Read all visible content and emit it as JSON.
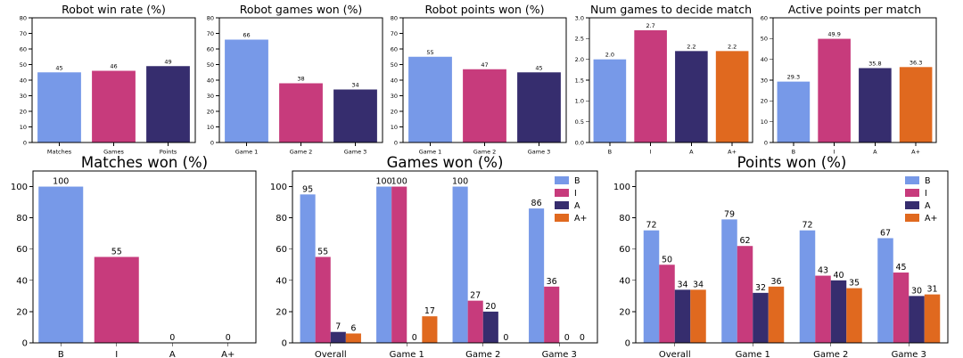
{
  "colors": {
    "B": "#7799e8",
    "I": "#c73b7c",
    "A": "#362d6e",
    "A+": "#e0691f"
  },
  "chart_data": [
    {
      "id": "robot-win-rate",
      "type": "bar",
      "title": "Robot win rate (%)",
      "categories": [
        "Matches",
        "Games",
        "Points"
      ],
      "series": [
        {
          "name": "win rate",
          "values": [
            45,
            46,
            49
          ]
        }
      ],
      "labels": [
        "45",
        "46",
        "49"
      ],
      "bar_colors": [
        "#7799e8",
        "#c73b7c",
        "#362d6e"
      ],
      "ylim": [
        0,
        80
      ],
      "yticks": [
        "0",
        "10",
        "20",
        "30",
        "40",
        "50",
        "60",
        "70",
        "80"
      ]
    },
    {
      "id": "robot-games-won",
      "type": "bar",
      "title": "Robot games won (%)",
      "categories": [
        "Game 1",
        "Game 2",
        "Game 3"
      ],
      "series": [
        {
          "name": "games won",
          "values": [
            66,
            38,
            34
          ]
        }
      ],
      "labels": [
        "66",
        "38",
        "34"
      ],
      "bar_colors": [
        "#7799e8",
        "#c73b7c",
        "#362d6e"
      ],
      "ylim": [
        0,
        80
      ],
      "yticks": [
        "0",
        "10",
        "20",
        "30",
        "40",
        "50",
        "60",
        "70",
        "80"
      ]
    },
    {
      "id": "robot-points-won",
      "type": "bar",
      "title": "Robot points won (%)",
      "categories": [
        "Game 1",
        "Game 2",
        "Game 3"
      ],
      "series": [
        {
          "name": "points won",
          "values": [
            55,
            47,
            45
          ]
        }
      ],
      "labels": [
        "55",
        "47",
        "45"
      ],
      "bar_colors": [
        "#7799e8",
        "#c73b7c",
        "#362d6e"
      ],
      "ylim": [
        0,
        80
      ],
      "yticks": [
        "0",
        "10",
        "20",
        "30",
        "40",
        "50",
        "60",
        "70",
        "80"
      ]
    },
    {
      "id": "num-games-to-decide",
      "type": "bar",
      "title": "Num games to decide match",
      "categories": [
        "B",
        "I",
        "A",
        "A+"
      ],
      "series": [
        {
          "name": "games",
          "values": [
            2.0,
            2.7,
            2.2,
            2.2
          ]
        }
      ],
      "labels": [
        "2.0",
        "2.7",
        "2.2",
        "2.2"
      ],
      "bar_colors": [
        "#7799e8",
        "#c73b7c",
        "#362d6e",
        "#e0691f"
      ],
      "ylim": [
        0,
        3.0
      ],
      "yticks": [
        "0.0",
        "0.5",
        "1.0",
        "1.5",
        "2.0",
        "2.5",
        "3.0"
      ]
    },
    {
      "id": "active-points-per-match",
      "type": "bar",
      "title": "Active points per match",
      "categories": [
        "B",
        "I",
        "A",
        "A+"
      ],
      "series": [
        {
          "name": "points",
          "values": [
            29.3,
            49.9,
            35.8,
            36.3
          ]
        }
      ],
      "labels": [
        "29.3",
        "49.9",
        "35.8",
        "36.3"
      ],
      "bar_colors": [
        "#7799e8",
        "#c73b7c",
        "#362d6e",
        "#e0691f"
      ],
      "ylim": [
        0,
        60
      ],
      "yticks": [
        "0",
        "10",
        "20",
        "30",
        "40",
        "50",
        "60"
      ]
    },
    {
      "id": "matches-won",
      "type": "bar",
      "title": "Matches won (%)",
      "categories": [
        "B",
        "I",
        "A",
        "A+"
      ],
      "series": [
        {
          "name": "matches won",
          "values": [
            100,
            55,
            0,
            0
          ]
        }
      ],
      "labels": [
        "100",
        "55",
        "0",
        "0"
      ],
      "bar_colors": [
        "#7799e8",
        "#c73b7c",
        "#362d6e",
        "#e0691f"
      ],
      "ylim": [
        0,
        110
      ],
      "yticks": [
        "0",
        "20",
        "40",
        "60",
        "80",
        "100"
      ]
    },
    {
      "id": "games-won",
      "type": "bar",
      "title": "Games won (%)",
      "categories": [
        "Overall",
        "Game 1",
        "Game 2",
        "Game 3"
      ],
      "series": [
        {
          "name": "B",
          "values": [
            95,
            100,
            100,
            86
          ]
        },
        {
          "name": "I",
          "values": [
            55,
            100,
            27,
            36
          ]
        },
        {
          "name": "A",
          "values": [
            7,
            0,
            20,
            0
          ]
        },
        {
          "name": "A+",
          "values": [
            6,
            17,
            0,
            0
          ]
        }
      ],
      "legend": [
        "B",
        "I",
        "A",
        "A+"
      ],
      "legend_position": "top-right",
      "ylim": [
        0,
        110
      ],
      "yticks": [
        "0",
        "20",
        "40",
        "60",
        "80",
        "100"
      ]
    },
    {
      "id": "points-won",
      "type": "bar",
      "title": "Points won (%)",
      "categories": [
        "Overall",
        "Game 1",
        "Game 2",
        "Game 3"
      ],
      "series": [
        {
          "name": "B",
          "values": [
            72,
            79,
            72,
            67
          ]
        },
        {
          "name": "I",
          "values": [
            50,
            62,
            43,
            45
          ]
        },
        {
          "name": "A",
          "values": [
            34,
            32,
            40,
            30
          ]
        },
        {
          "name": "A+",
          "values": [
            34,
            36,
            35,
            31
          ]
        }
      ],
      "legend": [
        "B",
        "I",
        "A",
        "A+"
      ],
      "legend_position": "top-right",
      "ylim": [
        0,
        110
      ],
      "yticks": [
        "0",
        "20",
        "40",
        "60",
        "80",
        "100"
      ]
    }
  ]
}
